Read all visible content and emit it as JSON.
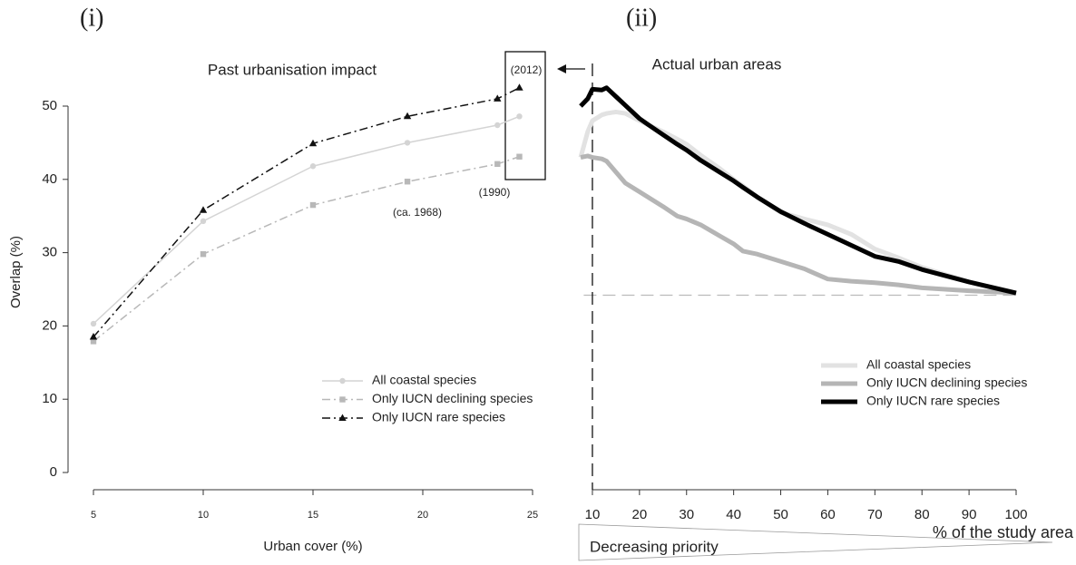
{
  "chart_data": [
    {
      "type": "line",
      "panel_label": "(i)",
      "title": "Past urbanisation impact",
      "x_label": "Urban cover (%)",
      "y_label": "Overlap (%)",
      "xlim": [
        5,
        25
      ],
      "xticks": [
        5,
        10,
        15,
        20,
        25
      ],
      "ylim": [
        0,
        50
      ],
      "yticks": [
        0,
        10,
        20,
        30,
        40,
        50
      ],
      "x": [
        5,
        10,
        15,
        19.3,
        23.4,
        24.4
      ],
      "series": [
        {
          "name": "All coastal species",
          "color": "#d4d4d4",
          "dash": "solid",
          "marker": "circle",
          "values": [
            20.3,
            34.3,
            41.8,
            45.0,
            47.4,
            48.6
          ]
        },
        {
          "name": "Only IUCN declining species",
          "color": "#b8b8b8",
          "dash": "dashdot",
          "marker": "square",
          "values": [
            17.9,
            29.8,
            36.5,
            39.7,
            42.1,
            43.1
          ]
        },
        {
          "name": "Only IUCN rare species",
          "color": "#111111",
          "dash": "dashdot",
          "marker": "triangle",
          "values": [
            18.5,
            35.8,
            44.9,
            48.6,
            51.0,
            52.5
          ]
        }
      ],
      "annotations": [
        "(ca. 1968)",
        "(1990)",
        "(2012)"
      ]
    },
    {
      "type": "line",
      "panel_label": "(ii)",
      "title": "Actual urban areas",
      "x_label": "% of the study area",
      "annotation": "Decreasing priority",
      "xlim": [
        7,
        100
      ],
      "xticks": [
        10,
        20,
        30,
        40,
        50,
        60,
        70,
        80,
        90,
        100
      ],
      "ylim": [
        0,
        50
      ],
      "hline": 24.2,
      "vline": 10,
      "x": [
        7.5,
        9,
        10,
        12,
        13,
        15,
        17,
        20,
        22,
        25,
        28,
        30,
        33,
        37,
        40,
        42,
        45,
        50,
        55,
        60,
        65,
        70,
        75,
        80,
        90,
        100
      ],
      "series": [
        {
          "name": "All coastal species",
          "color": "#e2e2e2",
          "values": [
            43,
            46.5,
            48,
            48.8,
            49,
            49.2,
            49,
            48,
            47.4,
            46.5,
            45.5,
            44.8,
            43.3,
            41.5,
            40,
            39.1,
            37.6,
            35.5,
            34.6,
            33.8,
            32.5,
            30.5,
            29.3,
            28,
            26,
            24.5
          ]
        },
        {
          "name": "Only IUCN declining species",
          "color": "#b5b5b5",
          "values": [
            43,
            43.2,
            43,
            42.8,
            42.5,
            41,
            39.5,
            38.3,
            37.5,
            36.3,
            35,
            34.6,
            33.8,
            32.3,
            31.2,
            30.2,
            29.8,
            28.8,
            27.8,
            26.4,
            26.1,
            25.9,
            25.6,
            25.2,
            24.8,
            24.5
          ]
        },
        {
          "name": "Only IUCN rare species",
          "color": "#000000",
          "values": [
            50,
            51,
            52.3,
            52.2,
            52.5,
            51.3,
            50.1,
            48.3,
            47.4,
            46.1,
            44.8,
            44,
            42.6,
            41,
            39.8,
            38.9,
            37.6,
            35.6,
            34,
            32.5,
            31,
            29.5,
            28.8,
            27.7,
            26,
            24.5
          ]
        }
      ]
    }
  ]
}
